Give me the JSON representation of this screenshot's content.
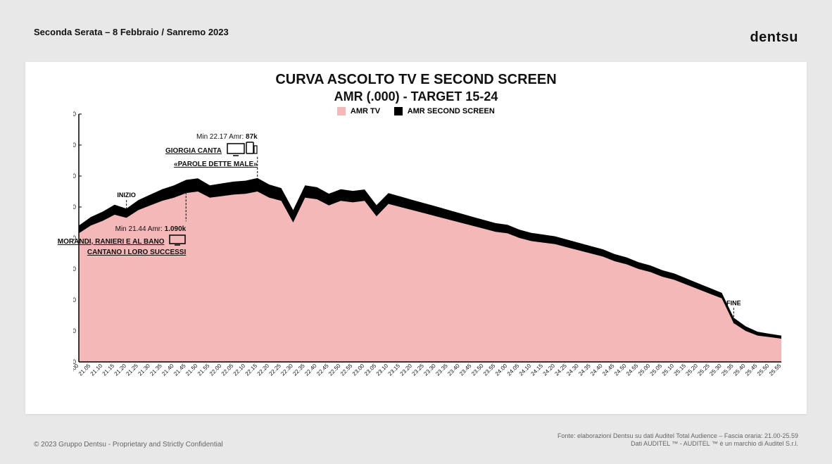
{
  "header": {
    "breadcrumb": "Seconda Serata – 8 Febbraio / Sanremo 2023",
    "logo": "dentsu"
  },
  "chart": {
    "type": "stacked-area",
    "title_line1": "CURVA ASCOLTO TV E SECOND SCREEN",
    "title_line2": "AMR (.000) - TARGET 15-24",
    "legend": [
      {
        "label": "AMR TV",
        "color": "#f4b8b8"
      },
      {
        "label": "AMR SECOND SCREEN",
        "color": "#000000"
      }
    ],
    "background_color": "#ffffff",
    "plot_background": "#ffffff",
    "series_tv_color": "#f4b8b8",
    "series_second_color": "#000000",
    "axis_color": "#000000",
    "ylim": [
      0,
      1600
    ],
    "ytick_step": 200,
    "yticks": [
      0,
      200,
      400,
      600,
      800,
      1000,
      1200,
      1400,
      1600
    ],
    "x_labels": [
      "21.00",
      "21.05",
      "21.10",
      "21.15",
      "21.20",
      "21.25",
      "21.30",
      "21.35",
      "21.40",
      "21.45",
      "21.50",
      "21.55",
      "22.00",
      "22.05",
      "22.10",
      "22.15",
      "22.20",
      "22.25",
      "22.30",
      "22.35",
      "22.40",
      "22.45",
      "22.50",
      "22.55",
      "23.00",
      "23.05",
      "23.10",
      "23.15",
      "23.20",
      "23.25",
      "23.30",
      "23.35",
      "23.40",
      "23.45",
      "23.50",
      "23.55",
      "24.00",
      "24.05",
      "24.10",
      "24.15",
      "24.20",
      "24.25",
      "24.30",
      "24.35",
      "24.40",
      "24.45",
      "24.50",
      "24.55",
      "25.00",
      "25.05",
      "25.10",
      "25.15",
      "25.20",
      "25.25",
      "25.30",
      "25.35",
      "25.40",
      "25.45",
      "25.50",
      "25.55"
    ],
    "amr_tv_values": [
      830,
      880,
      910,
      950,
      930,
      980,
      1010,
      1040,
      1060,
      1090,
      1100,
      1060,
      1070,
      1080,
      1085,
      1100,
      1060,
      1040,
      900,
      1060,
      1050,
      1010,
      1040,
      1030,
      1040,
      940,
      1020,
      1000,
      980,
      960,
      940,
      920,
      900,
      880,
      860,
      840,
      830,
      800,
      780,
      770,
      760,
      740,
      720,
      700,
      680,
      650,
      630,
      600,
      580,
      550,
      530,
      500,
      470,
      440,
      410,
      250,
      200,
      170,
      160,
      150
    ],
    "amr_second_values": [
      50,
      55,
      60,
      65,
      60,
      65,
      70,
      75,
      80,
      85,
      85,
      80,
      82,
      84,
      85,
      87,
      85,
      82,
      80,
      80,
      78,
      76,
      75,
      74,
      73,
      72,
      70,
      68,
      66,
      65,
      64,
      62,
      60,
      58,
      57,
      56,
      55,
      54,
      53,
      52,
      51,
      50,
      49,
      48,
      47,
      46,
      45,
      44,
      43,
      42,
      41,
      40,
      38,
      37,
      36,
      35,
      30,
      25,
      22,
      20
    ],
    "annotations": {
      "inizio": {
        "label": "INIZIO",
        "x_index": 4
      },
      "fine": {
        "label": "FINE",
        "x_index": 55
      },
      "peak_tv": {
        "header": "Min 21.44 Amr:",
        "value": "1.090k",
        "line1": "MORANDI, RANIERI E AL BANO",
        "line2": "CANTANO I LORO SUCCESSI",
        "x_index": 9,
        "icon": "tv"
      },
      "peak_second": {
        "header": "Min 22.17 Amr:",
        "value": "87k",
        "line1": "GIORGIA CANTA",
        "line2": "«PAROLE DETTE MALE»",
        "x_index": 15,
        "icon": "devices"
      }
    }
  },
  "footer": {
    "left": "© 2023 Gruppo Dentsu - Proprietary and Strictly Confidential",
    "right_line1": "Fonte: elaborazioni Dentsu su dati Auditel Total Audience – Fascia oraria: 21.00-25.59",
    "right_line2": "Dati AUDITEL ™  - AUDITEL ™  è un marchio di Auditel S.r.l."
  }
}
